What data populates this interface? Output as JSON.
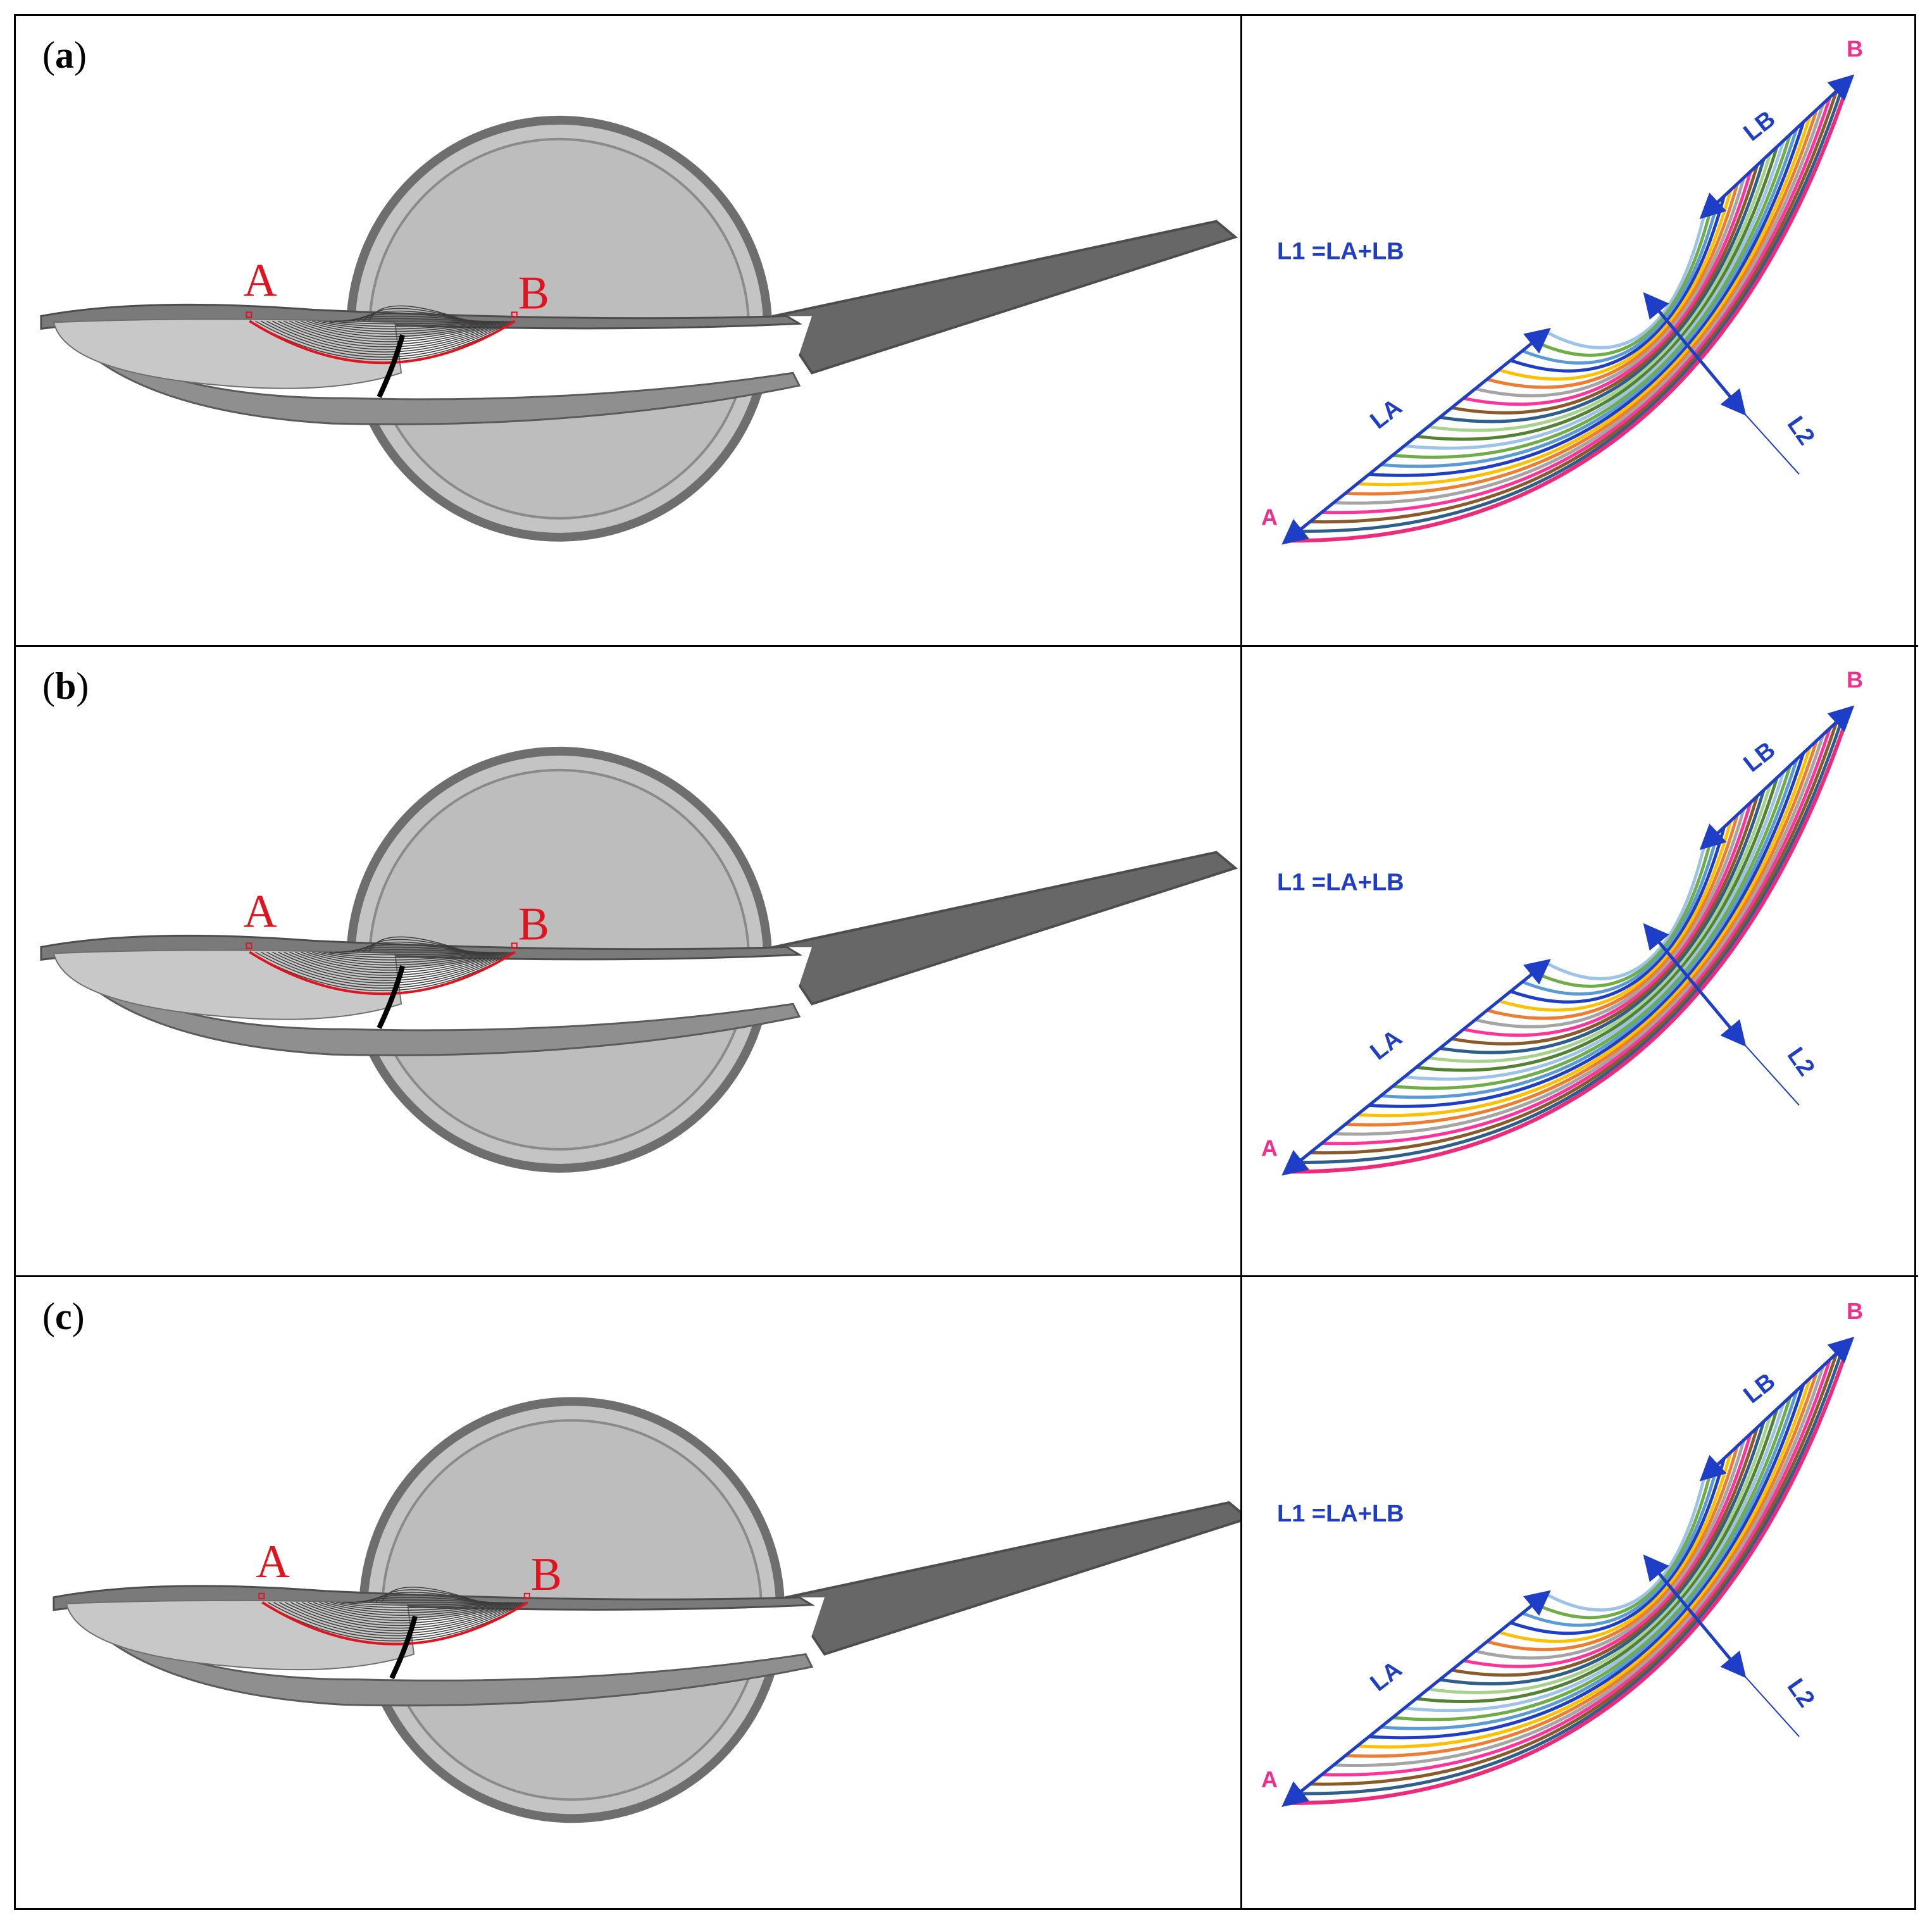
{
  "panels": [
    {
      "label": "a",
      "point_a": "A",
      "point_b": "B",
      "equation": "L1 =LA+LB",
      "dim_la": "LA",
      "dim_lb": "LB",
      "dim_l2": "L2",
      "end_a": "A",
      "end_b": "B"
    },
    {
      "label": "b",
      "point_a": "A",
      "point_b": "B",
      "equation": "L1 =LA+LB",
      "dim_la": "LA",
      "dim_lb": "LB",
      "dim_l2": "L2",
      "end_a": "A",
      "end_b": "B"
    },
    {
      "label": "c",
      "point_a": "A",
      "point_b": "B",
      "equation": "L1 =LA+LB",
      "dim_la": "LA",
      "dim_lb": "LB",
      "dim_l2": "L2",
      "end_a": "A",
      "end_b": "B"
    }
  ],
  "colors": {
    "red": "#e0141e",
    "dim_blue": "#1f3ec8",
    "outer_pink": "#ee2a7b",
    "curve_palette": [
      "#9dc3e6",
      "#70ad47",
      "#5b9bd5",
      "#1f3ec8",
      "#ffc000",
      "#ed7d31",
      "#a5a5a5",
      "#ff3399",
      "#8b5a2b",
      "#2e5e8c",
      "#a9d18e",
      "#548235"
    ]
  }
}
